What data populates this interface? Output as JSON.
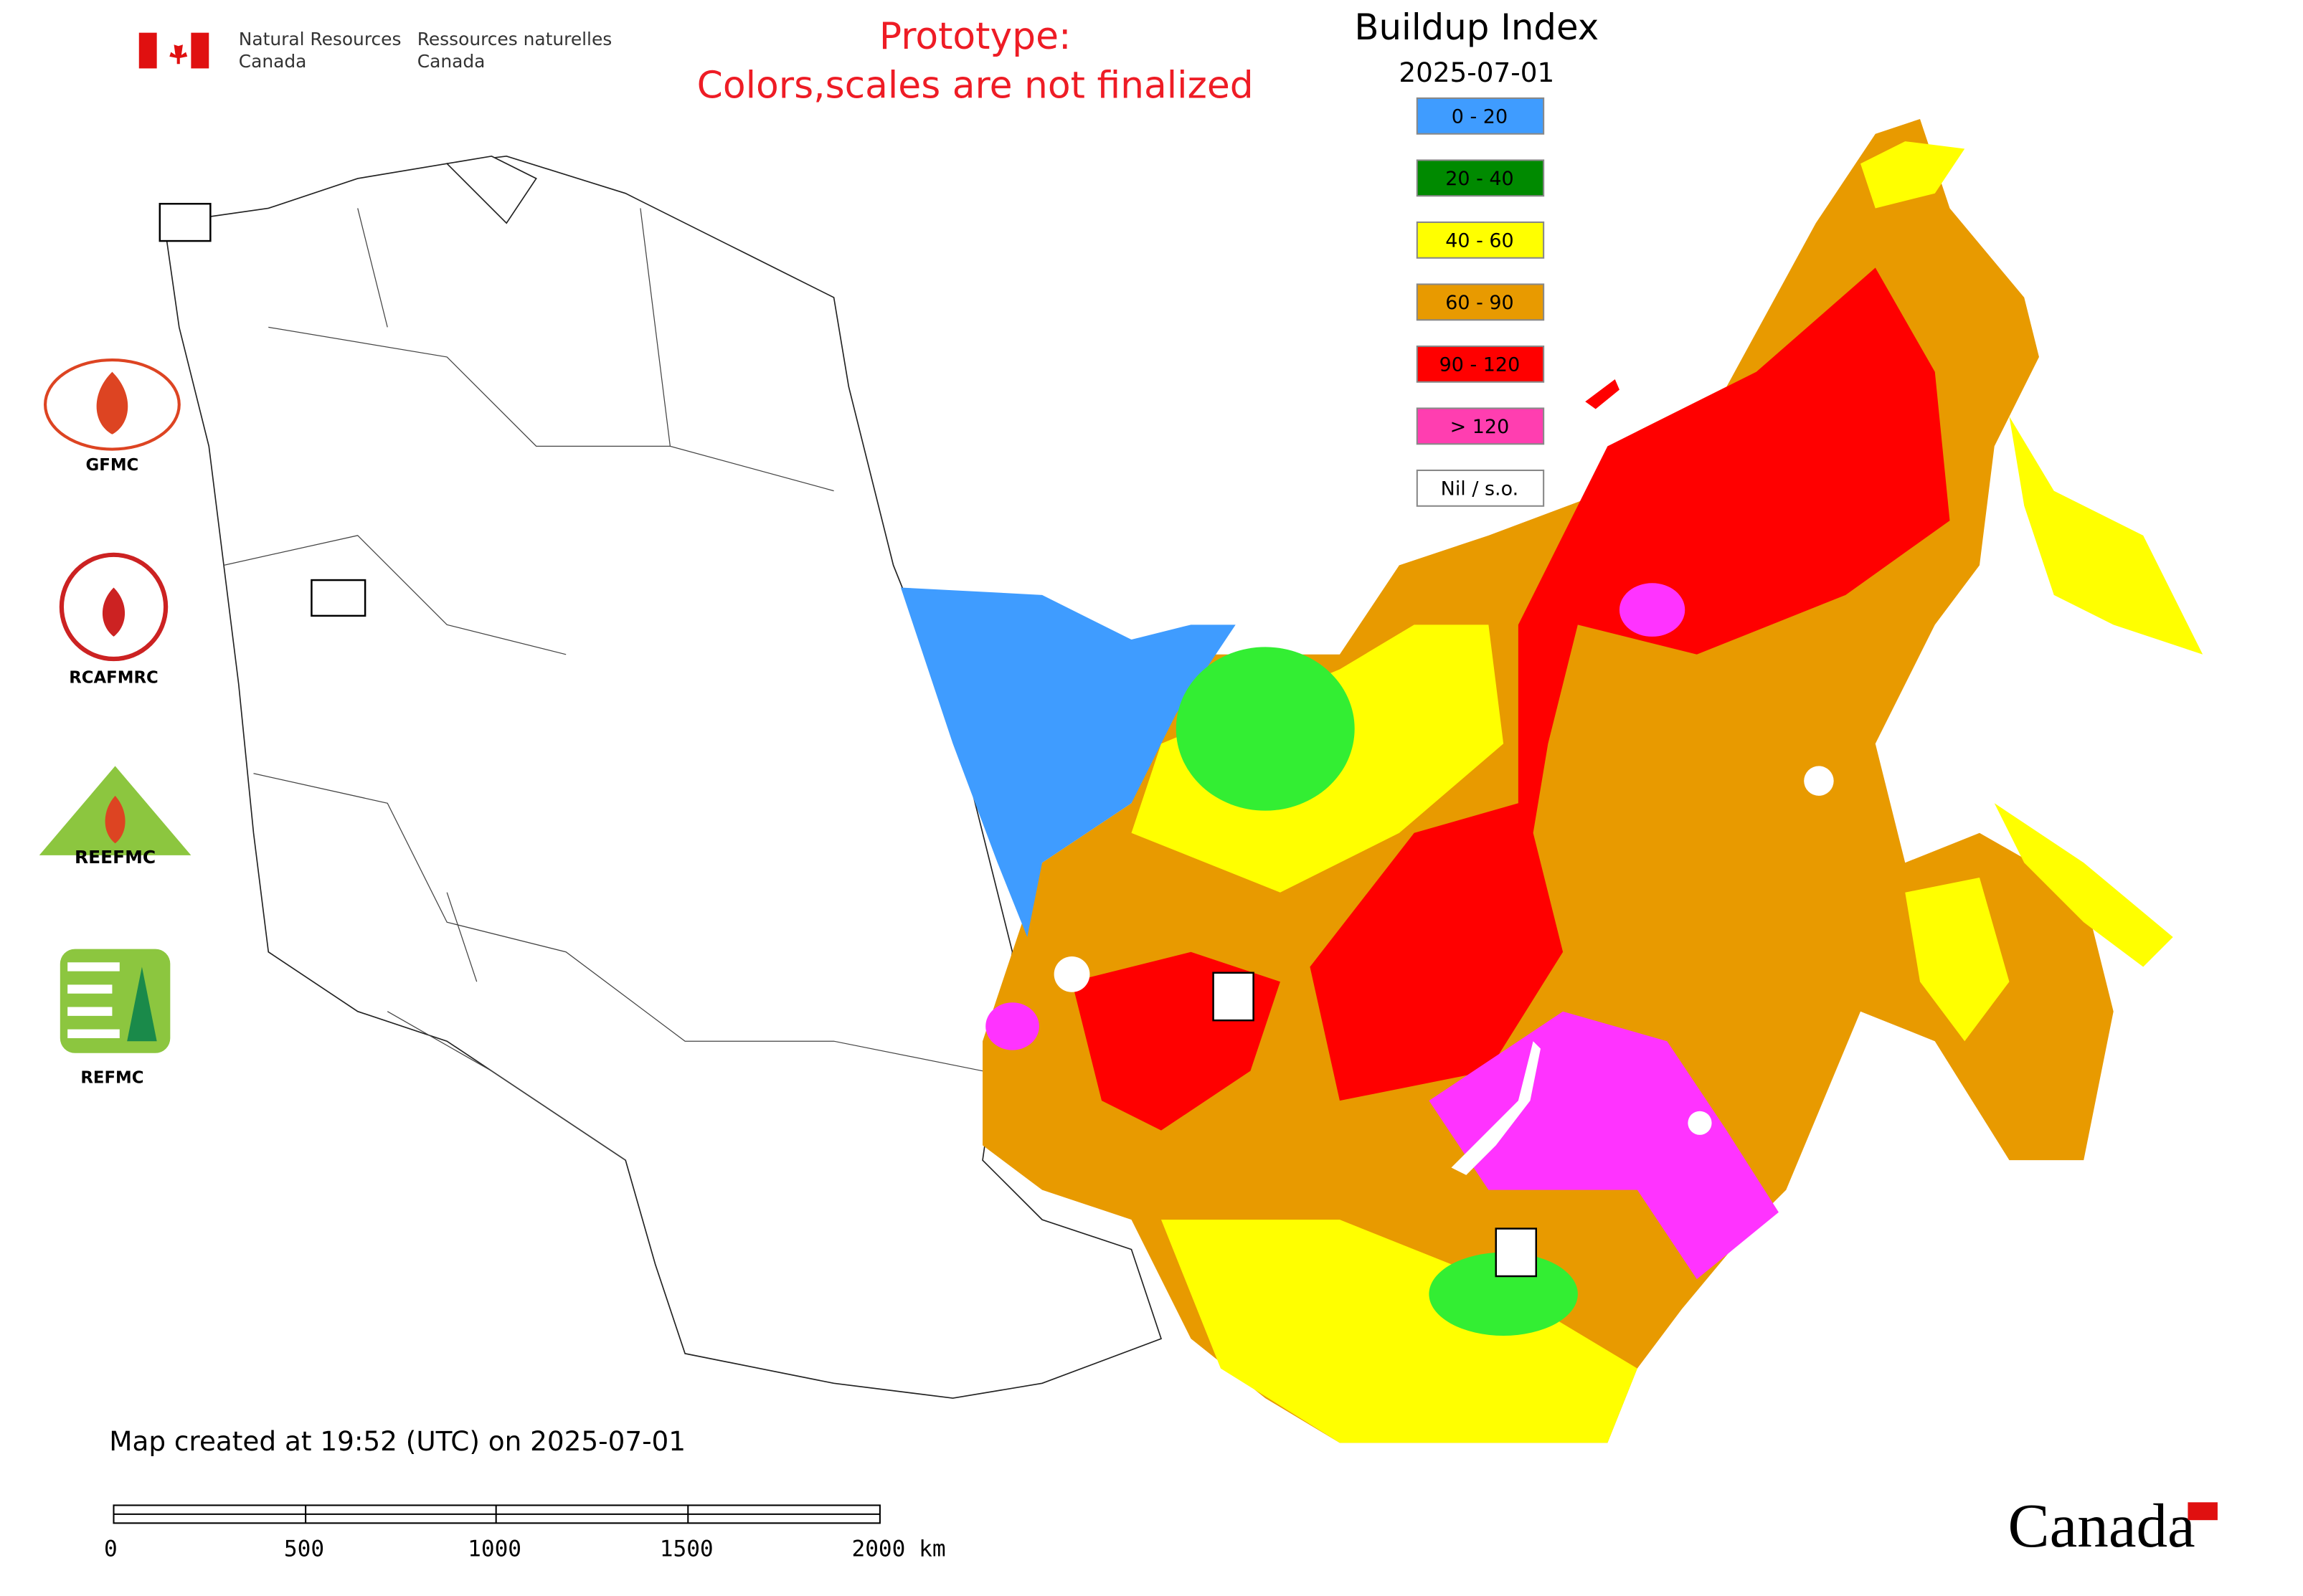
{
  "header": {
    "agency_en": [
      "Natural Resources",
      "Canada"
    ],
    "agency_fr": [
      "Ressources naturelles",
      "Canada"
    ],
    "notice": [
      "Prototype:",
      "Colors,scales are not finalized"
    ]
  },
  "legend": {
    "title": "Buildup Index",
    "date": "2025-07-01",
    "items": [
      {
        "label": "0 - 20",
        "color": "#3f9cff"
      },
      {
        "label": "20 - 40",
        "color": "#008a00"
      },
      {
        "label": "40 - 60",
        "color": "#ffff00"
      },
      {
        "label": "60 - 90",
        "color": "#e89a00"
      },
      {
        "label": "90 - 120",
        "color": "#ff0000"
      },
      {
        "label": "> 120",
        "color": "#ff3eb0"
      },
      {
        "label": "Nil / s.o.",
        "color": "#ffffff"
      }
    ]
  },
  "logos": [
    "GFMC",
    "RCAFMRC",
    "REEFMC",
    "REFMC"
  ],
  "timestamp": "Map created at 19:52 (UTC) on 2025-07-01",
  "scale_bar": {
    "labels": [
      "0",
      "500",
      "1000",
      "1500",
      "2000 km"
    ]
  },
  "wordmark": "Canada"
}
